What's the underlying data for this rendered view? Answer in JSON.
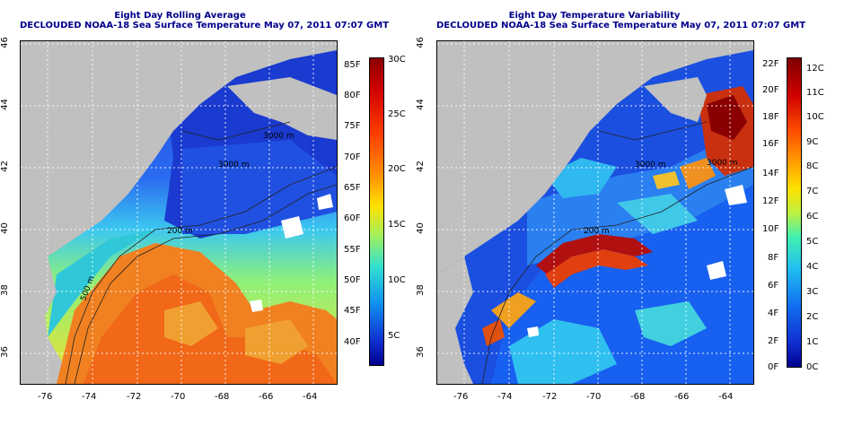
{
  "left_panel": {
    "title1": "Eight Day Rolling Average",
    "title2": "DECLOUDED NOAA-18 Sea Surface Temperature May 07, 2011 07:07 GMT",
    "x_ticks": [
      "-76",
      "-74",
      "-72",
      "-70",
      "-68",
      "-66",
      "-64"
    ],
    "y_ticks": [
      "46",
      "44",
      "42",
      "40",
      "38",
      "36"
    ],
    "contour_labels": [
      "200 m",
      "3000 m",
      "3000 m",
      "500 m"
    ],
    "colorbar_f": [
      "85F",
      "80F",
      "75F",
      "70F",
      "65F",
      "60F",
      "55F",
      "50F",
      "45F",
      "40F"
    ],
    "colorbar_c": [
      "30C",
      "25C",
      "20C",
      "15C",
      "10C",
      "5C"
    ]
  },
  "right_panel": {
    "title1": "Eight Day Temperature Variability",
    "title2": "DECLOUDED NOAA-18 Sea Surface Temperature May 07, 2011 07:07 GMT",
    "x_ticks": [
      "-76",
      "-74",
      "-72",
      "-70",
      "-68",
      "-66",
      "-64"
    ],
    "y_ticks": [
      "46",
      "44",
      "42",
      "40",
      "38",
      "36"
    ],
    "contour_labels": [
      "200 m",
      "3000 m",
      "3000 m"
    ],
    "colorbar_f": [
      "22F",
      "20F",
      "18F",
      "16F",
      "14F",
      "12F",
      "10F",
      "8F",
      "6F",
      "4F",
      "2F",
      "0F"
    ],
    "colorbar_c": [
      "12C",
      "11C",
      "10C",
      "9C",
      "8C",
      "7C",
      "6C",
      "5C",
      "4C",
      "3C",
      "2C",
      "1C",
      "0C"
    ]
  },
  "colors": {
    "land": "#c0c0c0",
    "title": "#00008b"
  }
}
